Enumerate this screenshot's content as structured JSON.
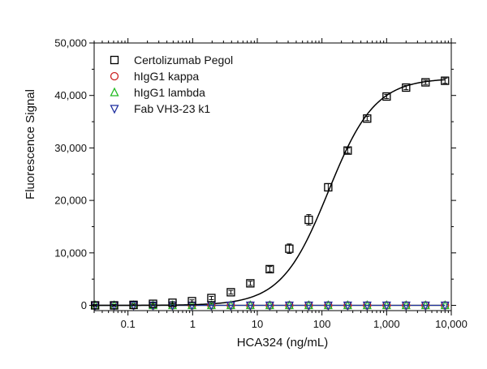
{
  "chart_data": {
    "type": "scatter",
    "title": "",
    "xlabel": "HCA324 (ng/mL)",
    "ylabel": "Fluorescence Signal",
    "xscale": "log",
    "xlim": [
      0.03,
      10000
    ],
    "ylim": [
      -1000,
      50000
    ],
    "grid": false,
    "legend_position": "top-left",
    "x_ticks": [
      0.1,
      1,
      10,
      100,
      1000,
      10000
    ],
    "x_tick_labels": [
      "0.1",
      "1",
      "10",
      "100",
      "1,000",
      "10,000"
    ],
    "y_ticks": [
      0,
      10000,
      20000,
      30000,
      40000,
      50000
    ],
    "y_tick_labels": [
      "0",
      "10,000",
      "20,000",
      "30,000",
      "40,000",
      "50,000"
    ],
    "x": [
      0.031,
      0.061,
      0.122,
      0.244,
      0.488,
      0.977,
      1.95,
      3.9,
      7.8,
      15.6,
      31.25,
      62.5,
      125,
      250,
      500,
      1000,
      2000,
      4000,
      8000
    ],
    "series": [
      {
        "name": "Certolizumab Pegol",
        "marker": "square",
        "color": "#000000",
        "values": [
          0,
          0,
          100,
          300,
          500,
          800,
          1400,
          2500,
          4200,
          6900,
          10800,
          16300,
          22500,
          29500,
          35600,
          39800,
          41500,
          42500,
          42800
        ],
        "errors": [
          150,
          150,
          150,
          200,
          200,
          250,
          300,
          350,
          400,
          500,
          900,
          1000,
          700,
          500,
          400,
          400,
          400,
          400,
          500
        ]
      },
      {
        "name": "hIgG1 kappa",
        "marker": "circle",
        "color": "#cc2222",
        "values": [
          0,
          0,
          0,
          0,
          0,
          0,
          0,
          0,
          0,
          0,
          0,
          0,
          0,
          0,
          0,
          0,
          0,
          0,
          0
        ]
      },
      {
        "name": "hIgG1 lambda",
        "marker": "triangle-up",
        "color": "#22bb22",
        "values": [
          0,
          0,
          0,
          0,
          0,
          0,
          0,
          0,
          0,
          0,
          0,
          0,
          0,
          0,
          0,
          0,
          0,
          0,
          0
        ]
      },
      {
        "name": "Fab VH3-23 k1",
        "marker": "triangle-down",
        "color": "#1f2f9f",
        "values": [
          0,
          0,
          0,
          0,
          0,
          0,
          0,
          0,
          0,
          0,
          0,
          0,
          0,
          0,
          0,
          0,
          0,
          0,
          0
        ]
      }
    ],
    "fit": {
      "series": "Certolizumab Pegol",
      "model": "4PL",
      "bottom": 0,
      "top": 43300,
      "ec50": 125,
      "hill": 1.2
    }
  }
}
